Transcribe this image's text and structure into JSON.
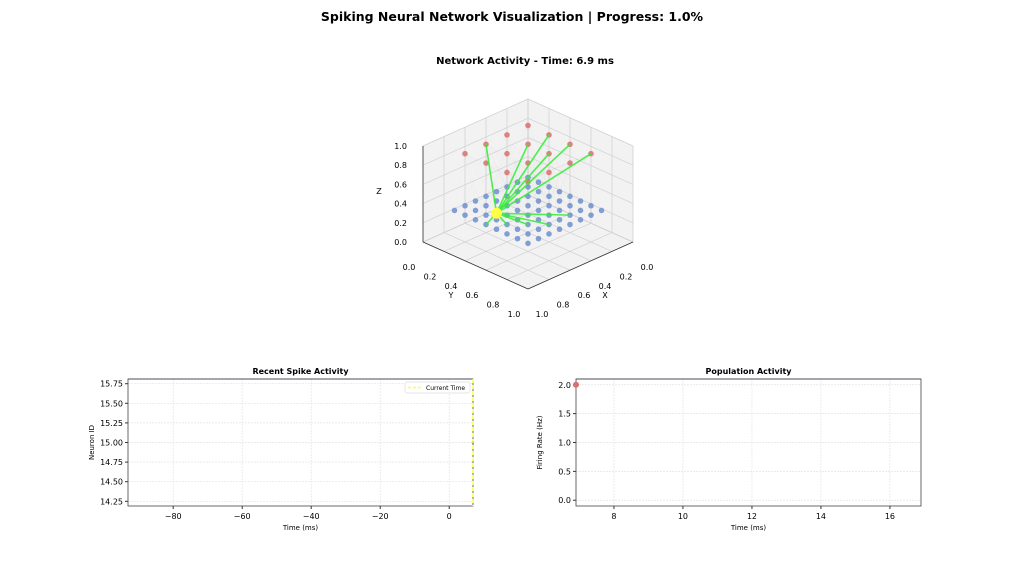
{
  "figure": {
    "suptitle": "Spiking Neural Network Visualization | Progress: 1.0%",
    "progress_percent": 1.0
  },
  "chart_data": [
    {
      "type": "scatter",
      "id": "network-3d",
      "title": "Network Activity - Time: 6.9 ms",
      "xlabel": "X",
      "ylabel": "Y",
      "zlabel": "Z",
      "xlim": [
        0,
        1
      ],
      "ylim": [
        0,
        1
      ],
      "zlim": [
        0,
        1
      ],
      "xticks": [
        "0.0",
        "0.2",
        "0.4",
        "0.6",
        "0.8",
        "1.0"
      ],
      "yticks": [
        "0.0",
        "0.2",
        "0.4",
        "0.6",
        "0.8",
        "1.0"
      ],
      "zticks": [
        "0.0",
        "0.2",
        "0.4",
        "0.6",
        "0.8",
        "1.0"
      ],
      "grid": true,
      "layers": [
        {
          "name": "input",
          "color": "#6f8fcf",
          "grid_coords": [
            0.1,
            0.2,
            0.3,
            0.4,
            0.5,
            0.6,
            0.7,
            0.8
          ],
          "z": 0.28
        },
        {
          "name": "output",
          "color": "#d9706f",
          "grid_coords": [
            0.2,
            0.4,
            0.6,
            0.8
          ],
          "z": 0.92
        }
      ],
      "spiking_neuron": {
        "x": 0.62,
        "y": 0.32,
        "z": 0.27,
        "color": "#ffff44"
      },
      "active_connection_color": "#33ee33",
      "active_targets": [
        {
          "layer": "output",
          "i": 2,
          "j": 0
        },
        {
          "layer": "output",
          "i": 0,
          "j": 1
        },
        {
          "layer": "output",
          "i": 1,
          "j": 1
        },
        {
          "layer": "output",
          "i": 0,
          "j": 2
        },
        {
          "layer": "output",
          "i": 1,
          "j": 2
        },
        {
          "layer": "output",
          "i": 0,
          "j": 3
        },
        {
          "layer": "input",
          "i": 2,
          "j": 6
        },
        {
          "layer": "input",
          "i": 4,
          "j": 6
        },
        {
          "layer": "input",
          "i": 5,
          "j": 5
        },
        {
          "layer": "input",
          "i": 6,
          "j": 4
        },
        {
          "layer": "input",
          "i": 7,
          "j": 3
        }
      ]
    },
    {
      "type": "scatter",
      "id": "spike-raster",
      "title": "Recent Spike Activity",
      "xlabel": "Time (ms)",
      "ylabel": "Neuron ID",
      "xlim": [
        -93.1,
        6.9
      ],
      "ylim": [
        14.19,
        15.81
      ],
      "xticks": [
        -80,
        -60,
        -40,
        -20,
        0
      ],
      "yticks": [
        14.25,
        14.5,
        14.75,
        15.0,
        15.25,
        15.5,
        15.75
      ],
      "ytick_labels": [
        "14.25",
        "14.50",
        "14.75",
        "15.00",
        "15.25",
        "15.50",
        "15.75"
      ],
      "xtick_labels": [
        "−80",
        "−60",
        "−40",
        "−20",
        "0"
      ],
      "grid": true,
      "points": [
        {
          "x": 6.9,
          "y": 15.0
        }
      ],
      "current_time": 6.9,
      "legend": {
        "position": "top-right",
        "entries": [
          {
            "label": "Current Time",
            "color": "#ffff44",
            "style": "dashed"
          }
        ]
      }
    },
    {
      "type": "line",
      "id": "population-activity",
      "title": "Population Activity",
      "xlabel": "Time (ms)",
      "ylabel": "Firing Rate (Hz)",
      "xlim": [
        6.9,
        16.9
      ],
      "ylim": [
        -0.1,
        2.1
      ],
      "xticks": [
        8,
        10,
        12,
        14,
        16
      ],
      "yticks": [
        0.0,
        0.5,
        1.0,
        1.5,
        2.0
      ],
      "xtick_labels": [
        "8",
        "10",
        "12",
        "14",
        "16"
      ],
      "ytick_labels": [
        "0.0",
        "0.5",
        "1.0",
        "1.5",
        "2.0"
      ],
      "grid": true,
      "series": [
        {
          "name": "rate",
          "color": "#d9706f",
          "x": [
            6.9
          ],
          "y": [
            2.0
          ]
        }
      ]
    }
  ]
}
